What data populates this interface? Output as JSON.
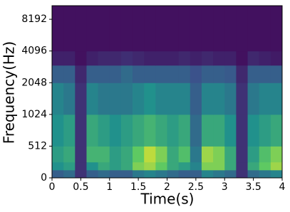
{
  "chart_data": {
    "type": "spectrogram",
    "xlabel": "Time(s)",
    "ylabel": "Frequency(Hz)",
    "xlim": [
      0,
      4
    ],
    "xticks": [
      0,
      0.5,
      1,
      1.5,
      2,
      2.5,
      3,
      3.5,
      4
    ],
    "ylim": [
      0,
      11025
    ],
    "yticks": [
      0,
      512,
      1024,
      2048,
      4096,
      8192
    ],
    "yscale": "symlog",
    "linthresh": 512,
    "time_bins": [
      0,
      0.2,
      0.4,
      0.6,
      0.8,
      1,
      1.2,
      1.4,
      1.6,
      1.8,
      2,
      2.2,
      2.4,
      2.6,
      2.8,
      3,
      3.2,
      3.4,
      3.6,
      3.8,
      4
    ],
    "freq_bins": [
      0,
      128,
      256,
      512,
      1024,
      2048,
      3000,
      4096,
      11025
    ],
    "zlim": [
      0,
      1
    ],
    "colormap": [
      "#440154",
      "#3b528b",
      "#21918c",
      "#5ec962",
      "#fde725"
    ],
    "z": [
      [
        0.3,
        0.35,
        0.15,
        0.3,
        0.35,
        0.3,
        0.3,
        0.4,
        0.45,
        0.4,
        0.35,
        0.3,
        0.3,
        0.45,
        0.4,
        0.35,
        0.15,
        0.35,
        0.4,
        0.45
      ],
      [
        0.5,
        0.55,
        0.15,
        0.5,
        0.6,
        0.55,
        0.6,
        0.8,
        0.85,
        0.75,
        0.6,
        0.55,
        0.45,
        0.8,
        0.8,
        0.6,
        0.15,
        0.6,
        0.75,
        0.85
      ],
      [
        0.55,
        0.6,
        0.15,
        0.65,
        0.65,
        0.55,
        0.6,
        0.75,
        0.9,
        0.8,
        0.6,
        0.7,
        0.4,
        0.85,
        0.8,
        0.6,
        0.15,
        0.55,
        0.7,
        0.8
      ],
      [
        0.5,
        0.55,
        0.15,
        0.6,
        0.55,
        0.5,
        0.55,
        0.6,
        0.65,
        0.6,
        0.55,
        0.6,
        0.35,
        0.6,
        0.6,
        0.5,
        0.15,
        0.5,
        0.55,
        0.6
      ],
      [
        0.45,
        0.4,
        0.15,
        0.45,
        0.4,
        0.4,
        0.4,
        0.45,
        0.5,
        0.45,
        0.45,
        0.45,
        0.3,
        0.45,
        0.45,
        0.4,
        0.15,
        0.4,
        0.45,
        0.45
      ],
      [
        0.3,
        0.3,
        0.12,
        0.3,
        0.3,
        0.3,
        0.35,
        0.3,
        0.3,
        0.3,
        0.3,
        0.3,
        0.25,
        0.3,
        0.3,
        0.28,
        0.12,
        0.3,
        0.3,
        0.3
      ],
      [
        0.1,
        0.1,
        0.05,
        0.1,
        0.12,
        0.12,
        0.14,
        0.12,
        0.1,
        0.1,
        0.1,
        0.12,
        0.1,
        0.12,
        0.1,
        0.1,
        0.05,
        0.12,
        0.1,
        0.08
      ],
      [
        0.05,
        0.05,
        0.05,
        0.05,
        0.05,
        0.05,
        0.05,
        0.05,
        0.05,
        0.05,
        0.05,
        0.05,
        0.05,
        0.05,
        0.05,
        0.05,
        0.05,
        0.05,
        0.05,
        0.05
      ]
    ]
  }
}
